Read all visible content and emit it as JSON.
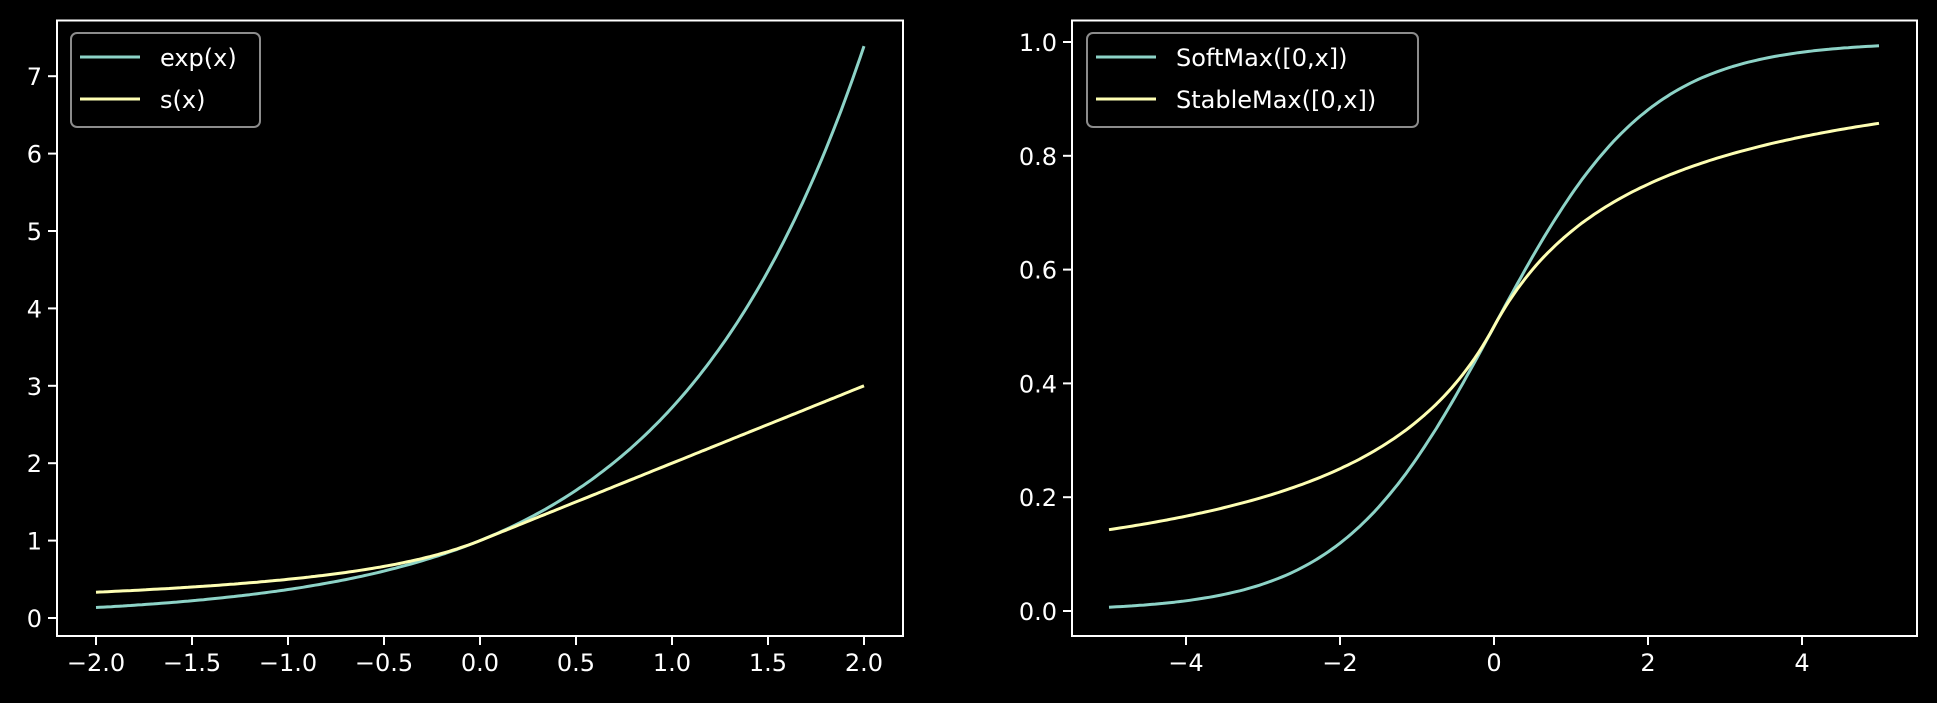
{
  "chart_data": [
    {
      "type": "line",
      "title": "",
      "xlabel": "",
      "ylabel": "",
      "xlim": [
        -2.25,
        2.25
      ],
      "ylim": [
        -0.24,
        7.77
      ],
      "xticks": [
        -2.0,
        -1.5,
        -1.0,
        -0.5,
        0.0,
        0.5,
        1.0,
        1.5,
        2.0
      ],
      "xtick_labels": [
        "−2.0",
        "−1.5",
        "−1.0",
        "−0.5",
        "0.0",
        "0.5",
        "1.0",
        "1.5",
        "2.0"
      ],
      "yticks": [
        0,
        1,
        2,
        3,
        4,
        5,
        6,
        7
      ],
      "ytick_labels": [
        "0",
        "1",
        "2",
        "3",
        "4",
        "5",
        "6",
        "7"
      ],
      "grid": false,
      "legend_position": "upper left",
      "x": [
        -2.0,
        -1.75,
        -1.5,
        -1.25,
        -1.0,
        -0.75,
        -0.5,
        -0.25,
        0.0,
        0.25,
        0.5,
        0.75,
        1.0,
        1.25,
        1.5,
        1.75,
        2.0
      ],
      "series": [
        {
          "name": "exp(x)",
          "color": "#8dd3c7",
          "values": [
            0.135,
            0.174,
            0.223,
            0.287,
            0.368,
            0.472,
            0.607,
            0.779,
            1.0,
            1.284,
            1.649,
            2.117,
            2.718,
            3.49,
            4.482,
            5.755,
            7.389
          ]
        },
        {
          "name": "s(x)",
          "color": "#feffb3",
          "values": [
            0.333,
            0.364,
            0.4,
            0.444,
            0.5,
            0.571,
            0.667,
            0.8,
            1.0,
            1.25,
            1.5,
            1.75,
            2.0,
            2.25,
            2.5,
            2.75,
            3.0
          ]
        }
      ]
    },
    {
      "type": "line",
      "title": "",
      "xlabel": "",
      "ylabel": "",
      "xlim": [
        -5.5,
        5.5
      ],
      "ylim": [
        -0.04,
        1.04
      ],
      "xticks": [
        -4,
        -2,
        0,
        2,
        4
      ],
      "xtick_labels": [
        "−4",
        "−2",
        "0",
        "2",
        "4"
      ],
      "yticks": [
        0.0,
        0.2,
        0.4,
        0.6,
        0.8,
        1.0
      ],
      "ytick_labels": [
        "0.0",
        "0.2",
        "0.4",
        "0.6",
        "0.8",
        "1.0"
      ],
      "grid": false,
      "legend_position": "upper left",
      "x": [
        -5,
        -4.5,
        -4,
        -3.5,
        -3,
        -2.5,
        -2,
        -1.5,
        -1,
        -0.5,
        0,
        0.5,
        1,
        1.5,
        2,
        2.5,
        3,
        3.5,
        4,
        4.5,
        5
      ],
      "series": [
        {
          "name": "SoftMax([0,x])",
          "color": "#8dd3c7",
          "values": [
            0.007,
            0.011,
            0.018,
            0.029,
            0.047,
            0.076,
            0.119,
            0.182,
            0.269,
            0.378,
            0.5,
            0.622,
            0.731,
            0.818,
            0.881,
            0.924,
            0.953,
            0.971,
            0.982,
            0.989,
            0.993
          ]
        },
        {
          "name": "StableMax([0,x])",
          "color": "#feffb3",
          "values": [
            0.143,
            0.154,
            0.167,
            0.182,
            0.2,
            0.222,
            0.25,
            0.286,
            0.333,
            0.4,
            0.5,
            0.6,
            0.667,
            0.714,
            0.75,
            0.778,
            0.8,
            0.818,
            0.833,
            0.846,
            0.857
          ]
        }
      ]
    }
  ],
  "legends": {
    "left": [
      "exp(x)",
      "s(x)"
    ],
    "right": [
      "SoftMax([0,x])",
      "StableMax([0,x])"
    ]
  },
  "colors": {
    "background": "#000000",
    "axes": "#ffffff",
    "legend_border": "#8c8c8c",
    "series_1": "#8dd3c7",
    "series_2": "#feffb3"
  }
}
